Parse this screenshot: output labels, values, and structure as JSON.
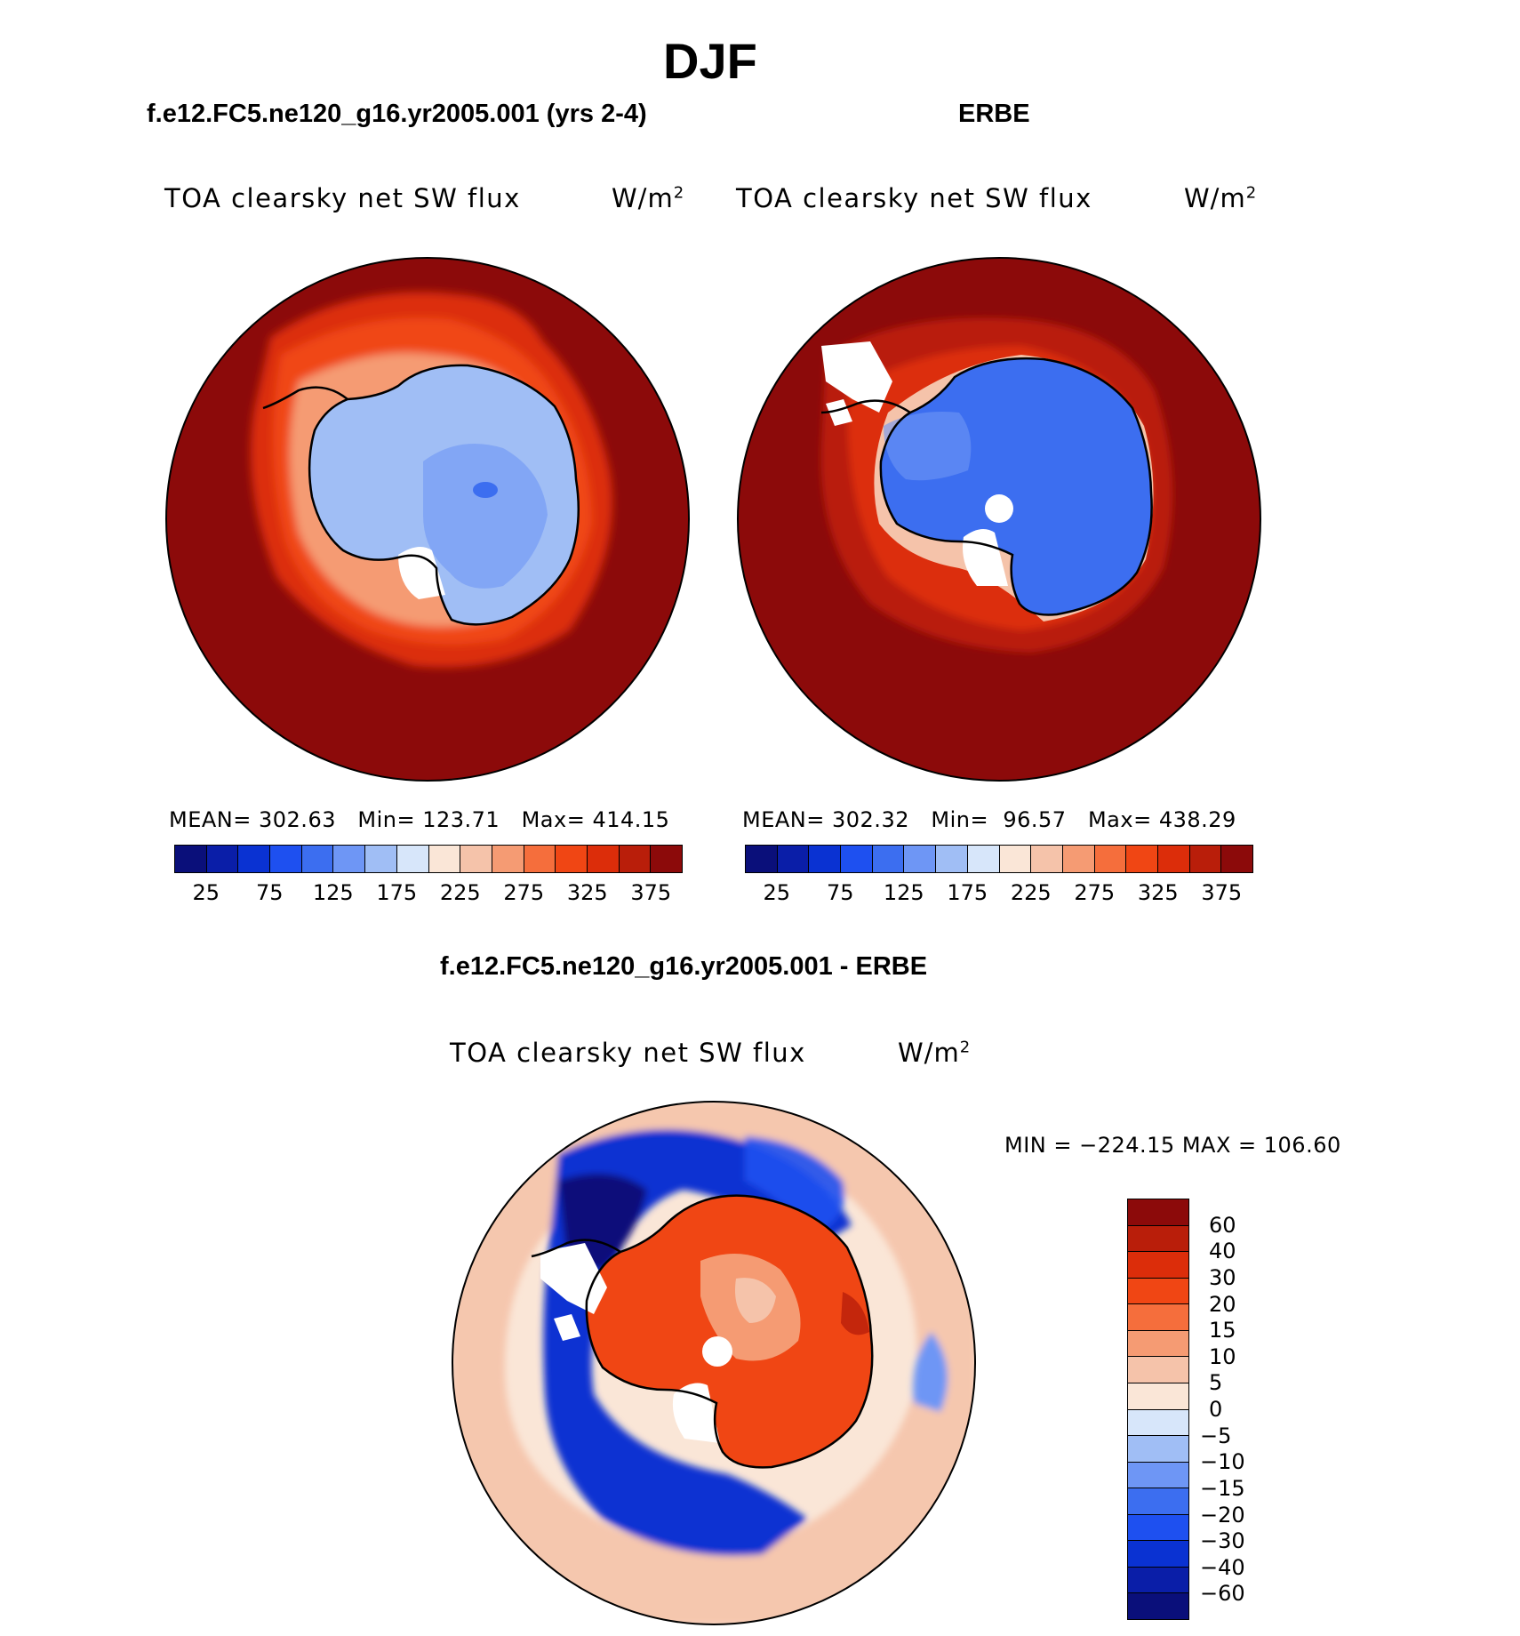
{
  "figure_title": "DJF",
  "panel_model": {
    "case_title": "f.e12.FC5.ne120_g16.yr2005.001 (yrs 2-4)",
    "variable": "TOA clearsky net SW flux",
    "units": "W/m",
    "units_sup": "2",
    "mean_label": "MEAN=",
    "mean_value": "302.63",
    "min_label": "Min=",
    "min_value": "123.71",
    "max_label": "Max=",
    "max_value": "414.15"
  },
  "panel_obs": {
    "case_title": "ERBE",
    "variable": "TOA clearsky net SW flux",
    "units": "W/m",
    "units_sup": "2",
    "mean_label": "MEAN=",
    "mean_value": "302.32",
    "min_label": "Min=",
    "min_value": "96.57",
    "max_label": "Max=",
    "max_value": "438.29"
  },
  "panel_diff": {
    "case_title": "f.e12.FC5.ne120_g16.yr2005.001 - ERBE",
    "variable": "TOA clearsky net SW flux",
    "units": "W/m",
    "units_sup": "2",
    "minmax_text": "MIN = −224.15 MAX = 106.60"
  },
  "abs_colorbar": {
    "colors": [
      "#0a0f7a",
      "#0a1ea8",
      "#0a32d2",
      "#1e50f0",
      "#3c6ef0",
      "#6e96f5",
      "#a0bef5",
      "#d7e6fa",
      "#fae6d7",
      "#f5c3aa",
      "#f59b73",
      "#f56e3c",
      "#f04614",
      "#dc2d0a",
      "#b91e0a",
      "#8c0a0a"
    ],
    "tick_labels": [
      "25",
      "75",
      "125",
      "175",
      "225",
      "275",
      "325",
      "375"
    ]
  },
  "diff_colorbar": {
    "colors": [
      "#8c0a0a",
      "#b91e0a",
      "#dc2d0a",
      "#f04614",
      "#f56e3c",
      "#f59b73",
      "#f5c3aa",
      "#fae6d7",
      "#d7e6fa",
      "#a0bef5",
      "#6e96f5",
      "#3c6ef0",
      "#1e50f0",
      "#0a32d2",
      "#0a1ea8",
      "#0a0f7a"
    ],
    "tick_labels": [
      "60",
      "40",
      "30",
      "20",
      "15",
      "10",
      "5",
      "0",
      "−5",
      "−10",
      "−15",
      "−20",
      "−30",
      "−40",
      "−60"
    ]
  },
  "chart_data": [
    {
      "type": "heatmap",
      "title": "TOA clearsky net SW flux",
      "subtitle": "f.e12.FC5.ne120_g16.yr2005.001 (yrs 2-4)",
      "units": "W/m2",
      "projection": "south polar stereographic",
      "levels": [
        25,
        50,
        75,
        100,
        125,
        150,
        175,
        200,
        225,
        250,
        275,
        300,
        325,
        350,
        375
      ],
      "stats": {
        "mean": 302.63,
        "min": 123.71,
        "max": 414.15
      }
    },
    {
      "type": "heatmap",
      "title": "TOA clearsky net SW flux",
      "subtitle": "ERBE",
      "units": "W/m2",
      "projection": "south polar stereographic",
      "levels": [
        25,
        50,
        75,
        100,
        125,
        150,
        175,
        200,
        225,
        250,
        275,
        300,
        325,
        350,
        375
      ],
      "stats": {
        "mean": 302.32,
        "min": 96.57,
        "max": 438.29
      }
    },
    {
      "type": "heatmap",
      "title": "TOA clearsky net SW flux",
      "subtitle": "f.e12.FC5.ne120_g16.yr2005.001 - ERBE",
      "units": "W/m2",
      "projection": "south polar stereographic",
      "levels": [
        -60,
        -40,
        -30,
        -20,
        -15,
        -10,
        -5,
        0,
        5,
        10,
        15,
        20,
        30,
        40,
        60
      ],
      "stats": {
        "min": -224.15,
        "max": 106.6
      }
    }
  ]
}
